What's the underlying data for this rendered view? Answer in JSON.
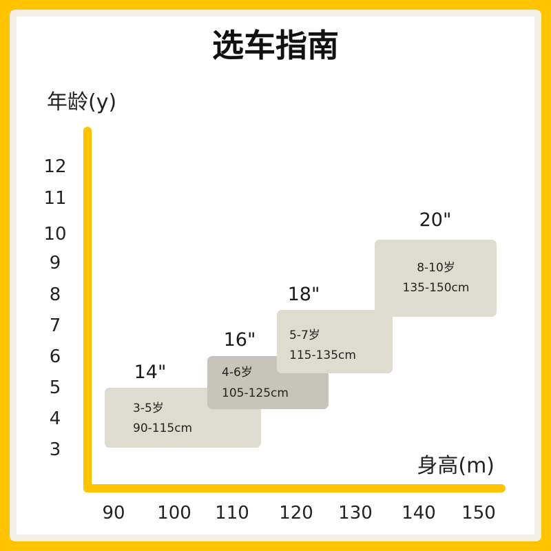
{
  "colors": {
    "accent": "#FFC300",
    "box": "#DEDBCF",
    "box_highlight": "#C7C5BA"
  },
  "chart_data": {
    "type": "range-boxes",
    "title": "选车指南",
    "ylabel": "年龄(y)",
    "xlabel": "身高(m)",
    "x_ticks": [
      "90",
      "100",
      "110",
      "120",
      "130",
      "140",
      "150"
    ],
    "y_ticks": [
      "12",
      "11",
      "10",
      "9",
      "8",
      "7",
      "6",
      "5",
      "4",
      "3"
    ],
    "boxes": [
      {
        "size": "14\"",
        "age": "3-5岁",
        "height": "90-115cm",
        "highlight": false
      },
      {
        "size": "16\"",
        "age": "4-6岁",
        "height": "105-125cm",
        "highlight": true
      },
      {
        "size": "18\"",
        "age": "5-7岁",
        "height": "115-135cm",
        "highlight": false
      },
      {
        "size": "20\"",
        "age": "8-10岁",
        "height": "135-150cm",
        "highlight": false
      }
    ]
  }
}
